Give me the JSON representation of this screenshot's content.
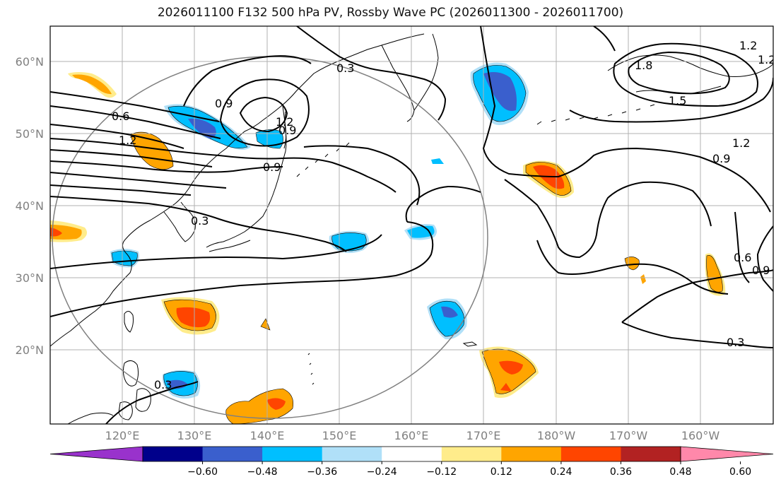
{
  "title": "2026011100 F132 500 hPa PV, Rossby Wave PC (2026011300 - 2026011700)",
  "lat_labels": [
    "60°N",
    "50°N",
    "40°N",
    "30°N",
    "20°N"
  ],
  "lon_labels": [
    "120°E",
    "130°E",
    "140°E",
    "150°E",
    "160°E",
    "170°E",
    "180°W",
    "170°W",
    "160°W"
  ],
  "colorbar": {
    "tick_labels": [
      "−0.60",
      "−0.48",
      "−0.36",
      "−0.24",
      "−0.12",
      "0.12",
      "0.24",
      "0.36",
      "0.48",
      "0.60"
    ],
    "colors": [
      "#9932cc",
      "#00008b",
      "#3a5fcd",
      "#00bfff",
      "#b0e0f8",
      "#ffffff",
      "#ffec8b",
      "#ffa500",
      "#ff4500",
      "#b22222",
      "#ff88aa"
    ]
  },
  "contour_labels": [
    "0.3",
    "0.6",
    "0.9",
    "1.2",
    "0.9",
    "0.3",
    "0.9",
    "1.2",
    "1.8",
    "1.5",
    "1.2",
    "0.9",
    "1.2",
    "0.6",
    "0.9",
    "0.3",
    "0.3",
    "1.2"
  ],
  "anomaly_colors": {
    "neg_light": "#b0e0f8",
    "neg": "#00bfff",
    "neg_strong": "#3a5fcd",
    "pos_light": "#ffec8b",
    "pos": "#ffa500",
    "pos_strong": "#ff4500"
  }
}
